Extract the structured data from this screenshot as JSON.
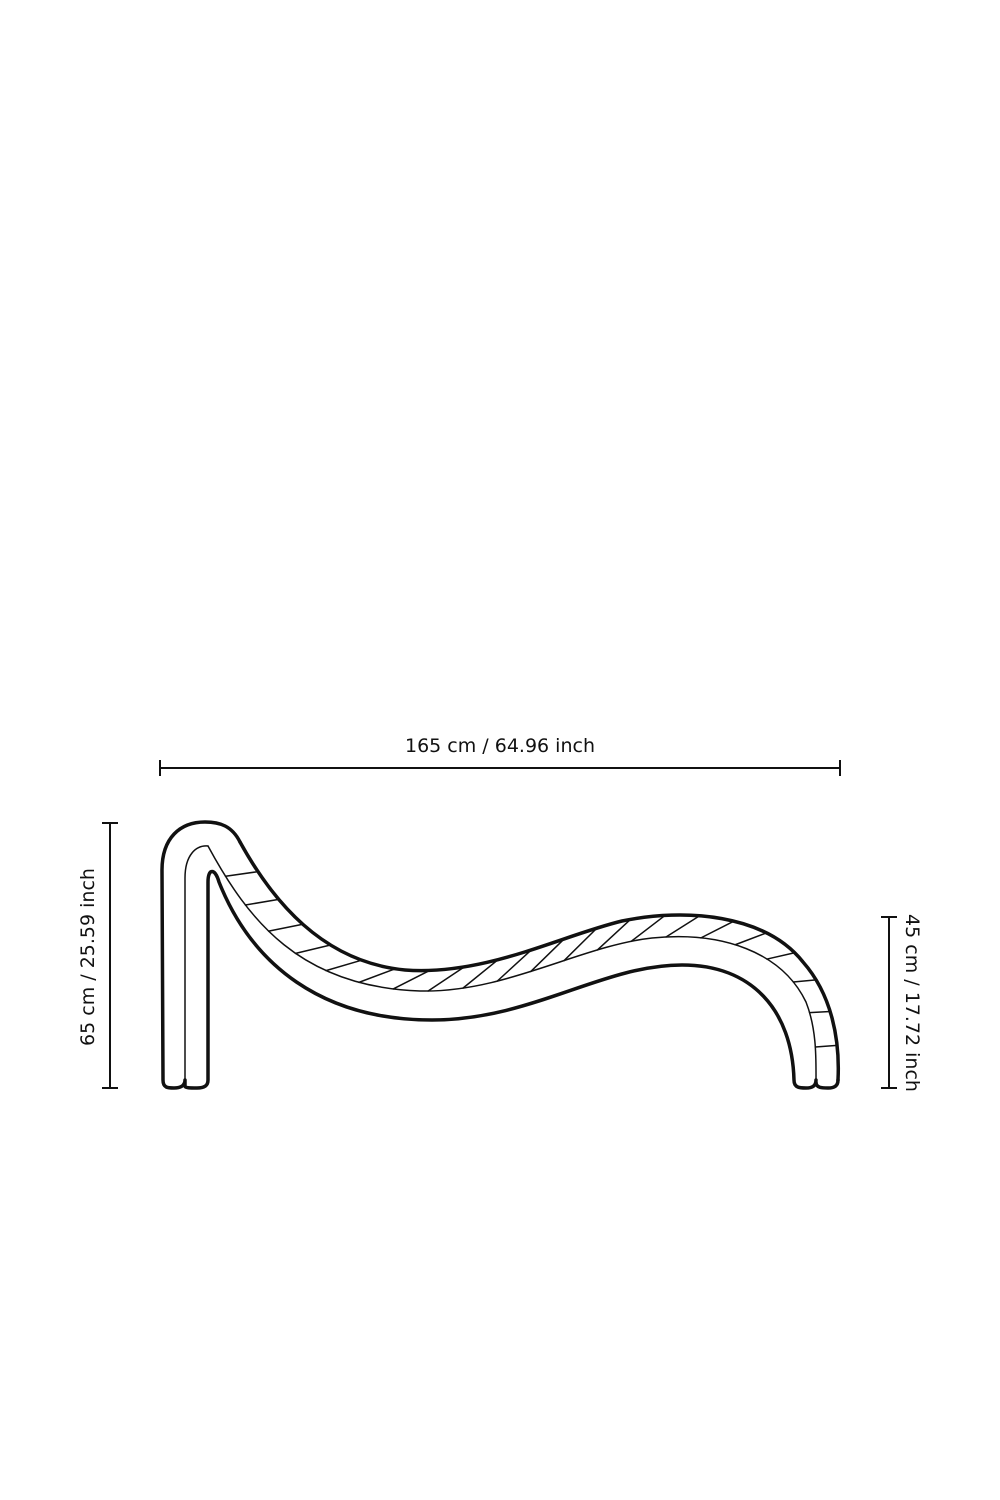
{
  "dimensions": {
    "width_label": "165 cm / 64.96 inch",
    "height_label": "65 cm / 25.59 inch",
    "seat_height_label": "45 cm / 17.72 inch"
  },
  "colors": {
    "line": "#111111",
    "background": "#ffffff"
  },
  "drawing": {
    "subject": "chaise-lounge-side-view",
    "cushion_segments": 22
  }
}
